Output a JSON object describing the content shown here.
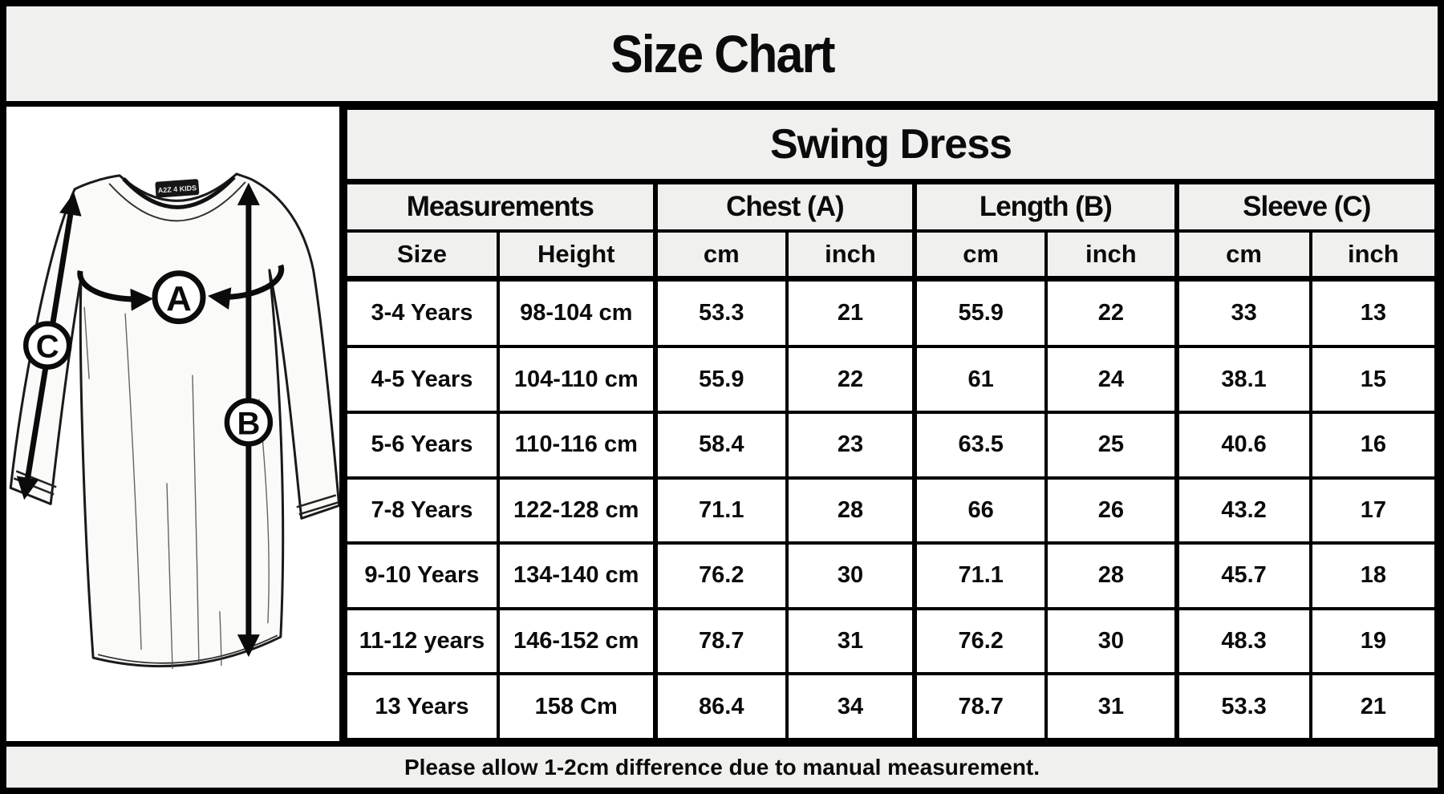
{
  "page": {
    "title": "Size Chart",
    "footer_note": "Please allow 1-2cm difference due to manual measurement."
  },
  "colors": {
    "background_gray": "#f0f0ee",
    "cell_white": "#ffffff",
    "border_black": "#000000",
    "text": "#0b0b0b"
  },
  "diagram": {
    "chest_marker": "A",
    "length_marker": "B",
    "sleeve_marker": "C",
    "tag_text": "A2Z 4 KIDS"
  },
  "table": {
    "product_title": "Swing Dress",
    "group_headers": [
      {
        "label": "Measurements",
        "span": 2
      },
      {
        "label": "Chest (A)",
        "span": 2
      },
      {
        "label": "Length (B)",
        "span": 2
      },
      {
        "label": "Sleeve (C)",
        "span": 2
      }
    ],
    "sub_headers": [
      "Size",
      "Height",
      "cm",
      "inch",
      "cm",
      "inch",
      "cm",
      "inch"
    ],
    "rows": [
      [
        "3-4 Years",
        "98-104 cm",
        "53.3",
        "21",
        "55.9",
        "22",
        "33",
        "13"
      ],
      [
        "4-5 Years",
        "104-110 cm",
        "55.9",
        "22",
        "61",
        "24",
        "38.1",
        "15"
      ],
      [
        "5-6 Years",
        "110-116 cm",
        "58.4",
        "23",
        "63.5",
        "25",
        "40.6",
        "16"
      ],
      [
        "7-8 Years",
        "122-128 cm",
        "71.1",
        "28",
        "66",
        "26",
        "43.2",
        "17"
      ],
      [
        "9-10 Years",
        "134-140 cm",
        "76.2",
        "30",
        "71.1",
        "28",
        "45.7",
        "18"
      ],
      [
        "11-12 years",
        "146-152 cm",
        "78.7",
        "31",
        "76.2",
        "30",
        "48.3",
        "19"
      ],
      [
        "13 Years",
        "158 Cm",
        "86.4",
        "34",
        "78.7",
        "31",
        "53.3",
        "21"
      ]
    ]
  }
}
